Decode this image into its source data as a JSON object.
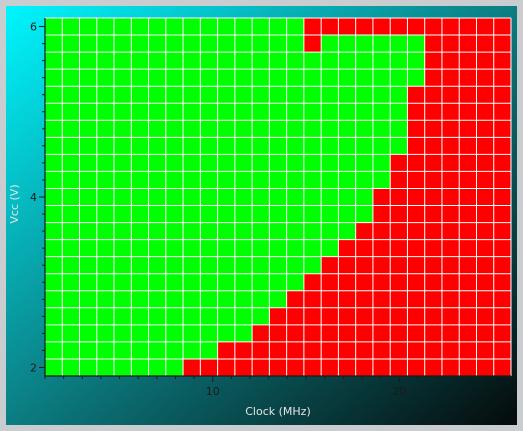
{
  "chart_data": {
    "type": "heatmap",
    "title": "",
    "xlabel": "Clock (MHz)",
    "ylabel": "Vcc (V)",
    "xlim": [
      1,
      26
    ],
    "ylim": [
      1.9,
      6.1
    ],
    "x_ticks": [
      10,
      20
    ],
    "y_ticks": [
      2,
      4,
      6
    ],
    "x_tick_labels": [
      "10",
      "20"
    ],
    "y_tick_labels": [
      "2",
      "4",
      "6"
    ],
    "grid": true,
    "legend": "none",
    "colors": {
      "pass": "#00ff00",
      "fail": "#ff0000",
      "grid": "#ffffff",
      "axes": "#1a1a1a"
    },
    "columns": 27,
    "column_x_start": 1.0,
    "column_x_step": 0.962,
    "row_values": [
      6.0,
      5.8,
      5.6,
      5.4,
      5.2,
      5.0,
      4.8,
      4.6,
      4.4,
      4.2,
      4.0,
      3.8,
      3.6,
      3.4,
      3.2,
      3.0,
      2.8,
      2.6,
      2.4,
      2.2,
      2.0
    ],
    "fail_from_column": [
      15,
      22,
      22,
      22,
      21,
      21,
      21,
      21,
      20,
      20,
      19,
      19,
      18,
      17,
      16,
      15,
      14,
      13,
      12,
      10,
      8
    ],
    "extra_fail_cells": [
      [
        0,
        16
      ],
      [
        1,
        15
      ]
    ]
  }
}
